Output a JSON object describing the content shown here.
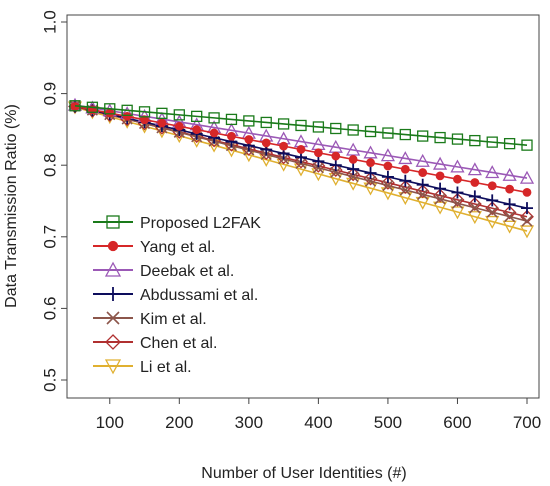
{
  "chart_data": {
    "type": "line",
    "title": "",
    "xlabel": "Number of User Identities (#)",
    "ylabel": "Data Transmission Ratio (%)",
    "xlim": [
      50,
      700
    ],
    "ylim": [
      0.5,
      1.0
    ],
    "xticks": [
      100,
      200,
      300,
      400,
      500,
      600,
      700
    ],
    "yticks": [
      0.5,
      0.6,
      0.7,
      0.8,
      0.9,
      1.0
    ],
    "ytick_labels": [
      "0.5",
      "0.6",
      "0.7",
      "0.8",
      "0.9",
      "1.0"
    ],
    "x": [
      50,
      75,
      100,
      125,
      150,
      175,
      200,
      225,
      250,
      275,
      300,
      325,
      350,
      375,
      400,
      425,
      450,
      475,
      500,
      525,
      550,
      575,
      600,
      625,
      650,
      675,
      700
    ],
    "legend_position": "bottom-left",
    "grid": false,
    "series": [
      {
        "name": "Proposed L2FAK",
        "color": "#1a7a1a",
        "marker": "square",
        "start": 0.883,
        "end": 0.828
      },
      {
        "name": "Yang et al.",
        "color": "#d62728",
        "marker": "circle",
        "start": 0.882,
        "end": 0.762
      },
      {
        "name": "Deebak et al.",
        "color": "#9b59b6",
        "marker": "triangle-up",
        "start": 0.884,
        "end": 0.782
      },
      {
        "name": "Abdussami et al.",
        "color": "#0d0d5c",
        "marker": "plus",
        "start": 0.882,
        "end": 0.74
      },
      {
        "name": "Kim et al.",
        "color": "#8c564b",
        "marker": "cross",
        "start": 0.883,
        "end": 0.722
      },
      {
        "name": "Chen et al.",
        "color": "#b03030",
        "marker": "diamond",
        "start": 0.882,
        "end": 0.728
      },
      {
        "name": "Li et al.",
        "color": "#e0b030",
        "marker": "triangle-down",
        "start": 0.881,
        "end": 0.708
      }
    ]
  }
}
